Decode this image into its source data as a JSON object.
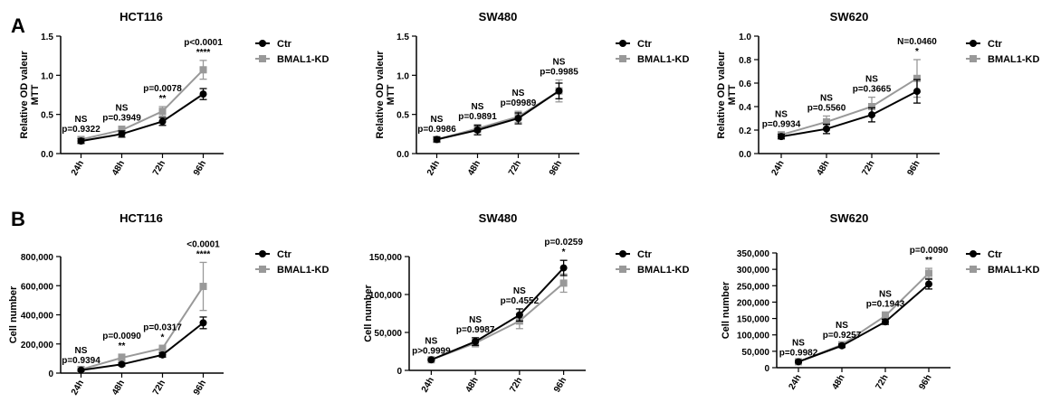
{
  "panels": [
    {
      "letter": "A"
    },
    {
      "letter": "B"
    }
  ],
  "legend": {
    "ctr": "Ctr",
    "kd": "BMAL1-KD"
  },
  "colors": {
    "ctr": "#000000",
    "kd": "#999999",
    "axis": "#000000"
  },
  "chart_data": [
    {
      "type": "line",
      "panel": "A",
      "title": "HCT116",
      "ylabel": "Relative OD valeur\nMTT",
      "categories": [
        "24h",
        "48h",
        "72h",
        "96h"
      ],
      "ylim": [
        0,
        1.5
      ],
      "yticks": [
        "0.0",
        "0.5",
        "1.0",
        "1.5"
      ],
      "ytick_values": [
        0,
        0.5,
        1.0,
        1.5
      ],
      "legend_position": "top-right",
      "series": [
        {
          "name": "Ctr",
          "values": [
            0.16,
            0.25,
            0.41,
            0.76
          ],
          "errors": [
            0.03,
            0.04,
            0.05,
            0.07
          ]
        },
        {
          "name": "BMAL1-KD",
          "values": [
            0.18,
            0.3,
            0.54,
            1.07
          ],
          "errors": [
            0.03,
            0.05,
            0.06,
            0.12
          ]
        }
      ],
      "annotations": [
        {
          "lines": [
            "NS",
            "p=0.9322"
          ]
        },
        {
          "lines": [
            "NS",
            "p=0.3949"
          ]
        },
        {
          "lines": [
            "p=0.0078",
            "**"
          ]
        },
        {
          "lines": [
            "p<0.0001",
            "****"
          ]
        }
      ]
    },
    {
      "type": "line",
      "panel": "A",
      "title": "SW480",
      "ylabel": "Relative OD valeur\nMTT",
      "categories": [
        "24h",
        "48h",
        "72h",
        "96h"
      ],
      "ylim": [
        0,
        1.5
      ],
      "yticks": [
        "0.0",
        "0.5",
        "1.0",
        "1.5"
      ],
      "ytick_values": [
        0,
        0.5,
        1.0,
        1.5
      ],
      "legend_position": "top-right",
      "series": [
        {
          "name": "Ctr",
          "values": [
            0.18,
            0.3,
            0.45,
            0.8
          ],
          "errors": [
            0.03,
            0.06,
            0.07,
            0.1
          ]
        },
        {
          "name": "BMAL1-KD",
          "values": [
            0.18,
            0.32,
            0.47,
            0.8
          ],
          "errors": [
            0.03,
            0.05,
            0.07,
            0.14
          ]
        }
      ],
      "annotations": [
        {
          "lines": [
            "NS",
            "p=0.9986"
          ]
        },
        {
          "lines": [
            "NS",
            "p=0.9891"
          ]
        },
        {
          "lines": [
            "NS",
            "p=09989"
          ]
        },
        {
          "lines": [
            "NS",
            "p=0.9985"
          ]
        }
      ]
    },
    {
      "type": "line",
      "panel": "A",
      "title": "SW620",
      "ylabel": "Relative OD valeur\nMTT",
      "categories": [
        "24h",
        "48h",
        "72h",
        "96h"
      ],
      "ylim": [
        0,
        1.0
      ],
      "yticks": [
        "0.0",
        "0.2",
        "0.4",
        "0.6",
        "0.8",
        "1.0"
      ],
      "ytick_values": [
        0,
        0.2,
        0.4,
        0.6,
        0.8,
        1.0
      ],
      "legend_position": "top-right",
      "series": [
        {
          "name": "Ctr",
          "values": [
            0.145,
            0.21,
            0.33,
            0.53
          ],
          "errors": [
            0.02,
            0.04,
            0.06,
            0.1
          ]
        },
        {
          "name": "BMAL1-KD",
          "values": [
            0.16,
            0.27,
            0.4,
            0.64
          ],
          "errors": [
            0.02,
            0.05,
            0.08,
            0.16
          ]
        }
      ],
      "annotations": [
        {
          "lines": [
            "NS",
            "p=0.9934"
          ]
        },
        {
          "lines": [
            "NS",
            "p=0.5560"
          ]
        },
        {
          "lines": [
            "NS",
            "p=0.3665"
          ]
        },
        {
          "lines": [
            "N=0.0460",
            "*"
          ]
        }
      ]
    },
    {
      "type": "line",
      "panel": "B",
      "title": "HCT116",
      "ylabel": "Cell number",
      "categories": [
        "24h",
        "48h",
        "72h",
        "96h"
      ],
      "ylim": [
        0,
        800000
      ],
      "yticks": [
        "0",
        "200,000",
        "400,000",
        "600,000",
        "800,000"
      ],
      "ytick_values": [
        0,
        200000,
        400000,
        600000,
        800000
      ],
      "legend_position": "top-right",
      "series": [
        {
          "name": "Ctr",
          "values": [
            20000,
            60000,
            125000,
            345000
          ],
          "errors": [
            5000,
            10000,
            15000,
            40000
          ]
        },
        {
          "name": "BMAL1-KD",
          "values": [
            25000,
            105000,
            170000,
            595000
          ],
          "errors": [
            5000,
            25000,
            20000,
            165000
          ]
        }
      ],
      "annotations": [
        {
          "lines": [
            "NS",
            "p=0.9394"
          ]
        },
        {
          "lines": [
            "p=0.0090",
            "**"
          ]
        },
        {
          "lines": [
            "p=0.0317",
            "*"
          ]
        },
        {
          "lines": [
            "<0.0001",
            "****"
          ]
        }
      ]
    },
    {
      "type": "line",
      "panel": "B",
      "title": "SW480",
      "ylabel": "Cell number",
      "categories": [
        "24h",
        "48h",
        "72h",
        "96h"
      ],
      "ylim": [
        0,
        150000
      ],
      "yticks": [
        "0",
        "50,000",
        "100,000",
        "150,000"
      ],
      "ytick_values": [
        0,
        50000,
        100000,
        150000
      ],
      "legend_position": "top-right",
      "series": [
        {
          "name": "Ctr",
          "values": [
            14000,
            38000,
            73000,
            135000
          ],
          "errors": [
            1000,
            5000,
            8000,
            10000
          ]
        },
        {
          "name": "BMAL1-KD",
          "values": [
            14000,
            36000,
            65000,
            115000
          ],
          "errors": [
            1000,
            5000,
            10000,
            12000
          ]
        }
      ],
      "annotations": [
        {
          "lines": [
            "NS",
            "p>0.9999"
          ]
        },
        {
          "lines": [
            "NS",
            "p=0.9987"
          ]
        },
        {
          "lines": [
            "NS",
            "p=0.4552"
          ]
        },
        {
          "lines": [
            "p=0.0259",
            "*"
          ]
        }
      ]
    },
    {
      "type": "line",
      "panel": "B",
      "title": "SW620",
      "ylabel": "Cell number",
      "categories": [
        "24h",
        "48h",
        "72h",
        "96h"
      ],
      "ylim": [
        0,
        350000
      ],
      "yticks": [
        "0",
        "50,000",
        "100,000",
        "150,000",
        "200,000",
        "250,000",
        "300,000",
        "350,000"
      ],
      "ytick_values": [
        0,
        50000,
        100000,
        150000,
        200000,
        250000,
        300000,
        350000
      ],
      "legend_position": "top-right",
      "series": [
        {
          "name": "Ctr",
          "values": [
            18000,
            67000,
            140000,
            255000
          ],
          "errors": [
            3000,
            5000,
            8000,
            15000
          ]
        },
        {
          "name": "BMAL1-KD",
          "values": [
            18000,
            70000,
            158000,
            288000
          ],
          "errors": [
            3000,
            5000,
            12000,
            15000
          ]
        }
      ],
      "annotations": [
        {
          "lines": [
            "NS",
            "p=0.9982"
          ]
        },
        {
          "lines": [
            "NS",
            "p=0.9257"
          ]
        },
        {
          "lines": [
            "NS",
            "p=0.1943"
          ]
        },
        {
          "lines": [
            "p=0.0090",
            "**"
          ]
        }
      ]
    }
  ]
}
